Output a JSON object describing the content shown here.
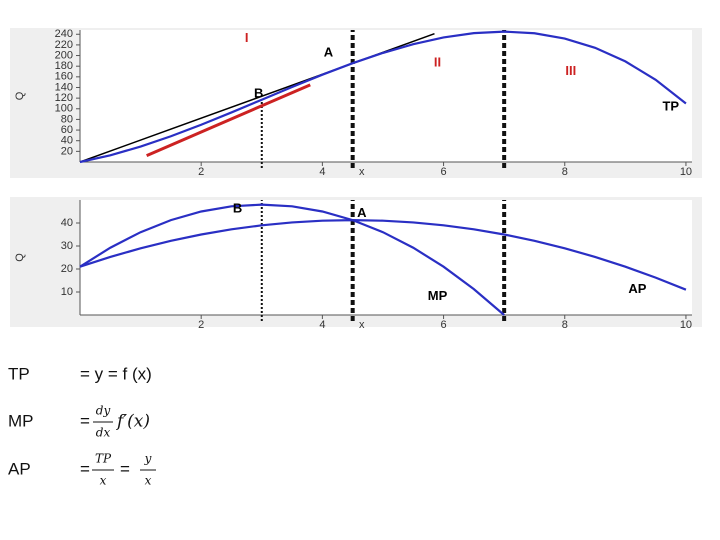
{
  "chart_data": [
    {
      "type": "line",
      "y_label": "Q",
      "x_label": "x",
      "x": [
        0,
        0.5,
        1,
        1.5,
        2,
        2.5,
        3,
        3.5,
        4,
        4.5,
        5,
        5.5,
        6,
        6.5,
        7,
        7.5,
        8,
        8.5,
        9,
        9.5,
        10
      ],
      "series": [
        {
          "color": "#2a2fc4",
          "values": [
            0,
            12.6,
            29,
            48.4,
            70,
            93.1,
            117,
            140.9,
            164,
            185.6,
            205,
            221.4,
            234,
            242.1,
            245,
            241.9,
            232,
            214.6,
            189,
            154.4,
            110
          ]
        }
      ],
      "lines": [
        {
          "color": "#000000",
          "x": [
            0,
            5.85
          ],
          "y": [
            0,
            241
          ]
        },
        {
          "color": "#cc2222",
          "x": [
            1.1,
            3.8
          ],
          "y": [
            12,
            145
          ]
        }
      ],
      "vlines": [
        {
          "x": 3,
          "ymax": 117,
          "style": "dotted"
        },
        {
          "x": 4.5,
          "ymax": 248,
          "style": "dashed"
        },
        {
          "x": 7,
          "ymax": 248,
          "style": "dashed"
        }
      ],
      "annotations": [
        {
          "text": "I",
          "x": 2.75,
          "y": 232,
          "color": "#cc2222"
        },
        {
          "text": "A",
          "x": 4.1,
          "y": 205,
          "color": "#000000"
        },
        {
          "text": "II",
          "x": 5.9,
          "y": 186,
          "color": "#cc2222"
        },
        {
          "text": "III",
          "x": 8.1,
          "y": 170,
          "color": "#cc2222"
        },
        {
          "text": "B",
          "x": 2.95,
          "y": 128,
          "color": "#000000"
        },
        {
          "text": "TP",
          "x": 9.75,
          "y": 103,
          "color": "#000000"
        }
      ],
      "xlim": [
        0,
        10.1
      ],
      "ylim": [
        0,
        248
      ],
      "xticks": [
        2,
        4,
        6,
        8,
        10
      ],
      "yticks": [
        20,
        40,
        60,
        80,
        100,
        120,
        140,
        160,
        180,
        200,
        220,
        240
      ]
    },
    {
      "type": "line",
      "y_label": "Q",
      "x_label": "x",
      "x": [
        0,
        0.5,
        1,
        1.5,
        2,
        2.5,
        3,
        3.5,
        4,
        4.5,
        5,
        5.5,
        6,
        6.5,
        7,
        7.5,
        8,
        8.5,
        9,
        9.5,
        10
      ],
      "series": [
        {
          "color": "#2a2fc4",
          "values": [
            21,
            29.25,
            36,
            41.25,
            45,
            47.25,
            48,
            47.25,
            45,
            41.25,
            36,
            29.25,
            21,
            11.25,
            0,
            null,
            null,
            null,
            null,
            null,
            null
          ]
        },
        {
          "color": "#2a2fc4",
          "values": [
            21,
            25.25,
            29,
            32.25,
            35,
            37.25,
            39,
            40.25,
            41,
            41.25,
            41,
            40.25,
            39,
            37.25,
            35,
            32.25,
            29,
            25.25,
            21,
            16.25,
            11
          ]
        }
      ],
      "lines": [],
      "vlines": [
        {
          "x": 3,
          "ymax": 50,
          "style": "dotted"
        },
        {
          "x": 4.5,
          "ymax": 50,
          "style": "dashed"
        },
        {
          "x": 7,
          "ymax": 50,
          "style": "dashed"
        }
      ],
      "annotations": [
        {
          "text": "B",
          "x": 2.6,
          "y": 46,
          "color": "#000000"
        },
        {
          "text": "A",
          "x": 4.65,
          "y": 44,
          "color": "#000000"
        },
        {
          "text": "MP",
          "x": 5.9,
          "y": 8,
          "color": "#000000"
        },
        {
          "text": "AP",
          "x": 9.2,
          "y": 11,
          "color": "#000000"
        }
      ],
      "xlim": [
        0,
        10.1
      ],
      "ylim": [
        0,
        50
      ],
      "xticks": [
        2,
        4,
        6,
        8,
        10
      ],
      "yticks": [
        10,
        20,
        30,
        40
      ]
    }
  ],
  "formulas": [
    {
      "label": "TP",
      "expr": "= y = f (x)"
    },
    {
      "label": "MP",
      "prefix": "=",
      "num": "dy",
      "den": "dx",
      "rest": "f′(x)"
    },
    {
      "label": "AP",
      "prefix": "=",
      "num": "TP",
      "den": "x",
      "mid": "=",
      "num2": "y",
      "den2": "x"
    }
  ]
}
